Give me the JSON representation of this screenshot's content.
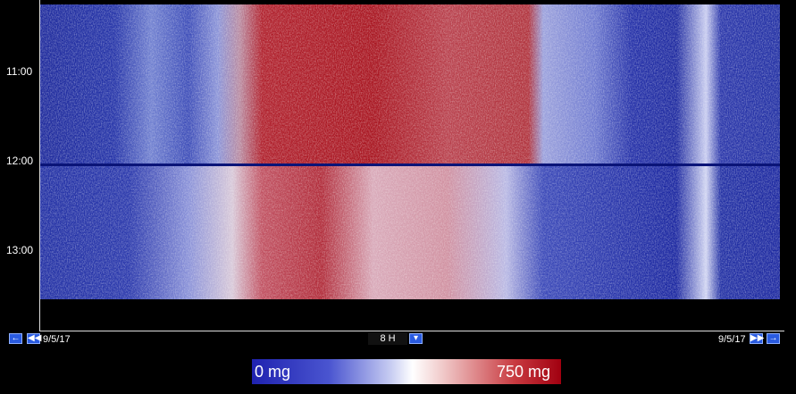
{
  "axis": {
    "time_labels": [
      "11:00",
      "12:00",
      "13:00"
    ]
  },
  "navigation": {
    "start_date": "9/5/17",
    "span": "8 H",
    "end_date": "9/5/17"
  },
  "color_scale": {
    "min_label": "0 mg",
    "max_label": "750 mg"
  }
}
